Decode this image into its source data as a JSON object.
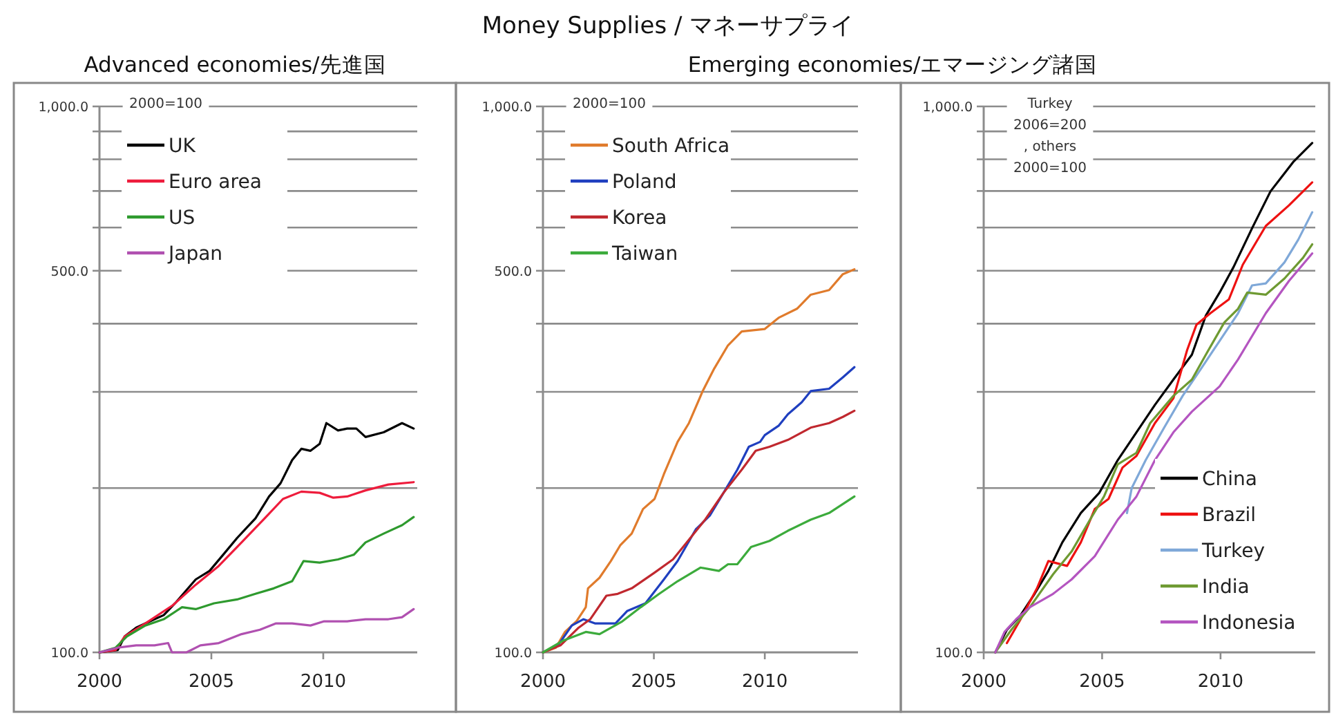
{
  "chart_data": [
    {
      "type": "other",
      "title": "Money Supplies / マネーサプライ"
    },
    {
      "type": "line",
      "subtitle": "Advanced economies/先進国",
      "log": "y",
      "grid": "y",
      "legend": "top left",
      "marker": "none",
      "line_style": "solid",
      "xlim": [
        2000,
        2014.2
      ],
      "xticks": [
        2000,
        2005,
        2010
      ],
      "ylim": [
        100,
        1000
      ],
      "yticks": [
        {
          "value": 100,
          "label": "100.0"
        },
        {
          "value": 200,
          "label": null
        },
        {
          "value": 300,
          "label": null
        },
        {
          "value": 400,
          "label": null
        },
        {
          "value": 500,
          "label": "500.0"
        },
        {
          "value": 600,
          "label": null
        },
        {
          "value": 700,
          "label": null
        },
        {
          "value": 800,
          "label": null
        },
        {
          "value": 900,
          "label": null
        },
        {
          "value": 1000,
          "label": "1,000.0"
        }
      ],
      "annotations": [
        "2000=100"
      ],
      "series": [
        {
          "name": "UK",
          "color": "#000000",
          "x": [
            2000,
            2000.82,
            2001.13,
            2001.64,
            2002.46,
            2002.87,
            2003.38,
            2004.3,
            2004.92,
            2005.53,
            2006.15,
            2006.97,
            2007.58,
            2008.09,
            2008.61,
            2009.02,
            2009.43,
            2009.84,
            2010.14,
            2010.66,
            2011.07,
            2011.48,
            2011.89,
            2012.7,
            2013.52,
            2014.04
          ],
          "values": [
            100,
            101,
            107,
            111,
            115,
            117,
            123,
            136,
            141,
            151,
            162,
            176,
            193,
            204,
            225,
            236,
            234,
            241,
            263,
            255,
            257,
            257,
            248,
            253,
            263,
            257
          ]
        },
        {
          "name": "Euro area",
          "color": "#ee1c3c",
          "x": [
            2000,
            2000.72,
            2001.13,
            2002.05,
            2003.28,
            2004.3,
            2005.33,
            2006.35,
            2007.38,
            2008.2,
            2009.02,
            2009.84,
            2010.45,
            2011.07,
            2011.89,
            2012.91,
            2014.04
          ],
          "values": [
            100,
            101,
            107,
            113,
            122,
            133,
            144,
            159,
            176,
            191,
            197,
            196,
            192,
            193,
            198,
            203,
            205
          ]
        },
        {
          "name": "US",
          "color": "#2e9a2e",
          "x": [
            2000,
            2000.72,
            2001.23,
            2002.05,
            2002.87,
            2003.69,
            2004.3,
            2005.12,
            2006.15,
            2006.97,
            2007.79,
            2008.61,
            2009.12,
            2009.84,
            2010.66,
            2011.37,
            2011.89,
            2012.7,
            2013.52,
            2014.04
          ],
          "values": [
            100,
            102,
            107,
            112,
            115,
            121,
            120,
            123,
            125,
            128,
            131,
            135,
            147,
            146,
            148,
            151,
            159,
            165,
            171,
            177
          ]
        },
        {
          "name": "Japan",
          "color": "#b050b0",
          "x": [
            2000,
            2000.82,
            2001.64,
            2002.46,
            2003.07,
            2003.24,
            2003.89,
            2004.51,
            2005.33,
            2006.35,
            2007.17,
            2007.89,
            2008.61,
            2009.43,
            2010.04,
            2011.07,
            2011.89,
            2012.91,
            2013.52,
            2014.04
          ],
          "values": [
            100,
            102,
            103,
            103,
            104,
            100,
            100,
            103,
            104,
            108,
            110,
            113,
            113,
            112,
            114,
            114,
            115,
            115,
            116,
            120
          ]
        }
      ]
    },
    {
      "type": "line",
      "subtitle": "Emerging economies/エマージング諸国",
      "log": "y",
      "grid": "y",
      "legend": "top left",
      "marker": "none",
      "line_style": "solid",
      "xlim": [
        2000,
        2014.2
      ],
      "xticks": [
        2000,
        2005,
        2010
      ],
      "ylim": [
        100,
        1000
      ],
      "yticks": [
        {
          "value": 100,
          "label": "100.0"
        },
        {
          "value": 200,
          "label": null
        },
        {
          "value": 300,
          "label": null
        },
        {
          "value": 400,
          "label": null
        },
        {
          "value": 500,
          "label": "500.0"
        },
        {
          "value": 600,
          "label": null
        },
        {
          "value": 700,
          "label": null
        },
        {
          "value": 800,
          "label": null
        },
        {
          "value": 900,
          "label": null
        },
        {
          "value": 1000,
          "label": "1,000.0"
        }
      ],
      "annotations": [
        "2000=100"
      ],
      "series": [
        {
          "name": "South Africa",
          "color": "#e07b2c",
          "x": [
            2000,
            2000.58,
            2000.99,
            2001.51,
            2001.93,
            2002.03,
            2002.55,
            2003.06,
            2003.48,
            2004.0,
            2004.51,
            2005.03,
            2005.45,
            2006.07,
            2006.58,
            2007.2,
            2007.72,
            2008.34,
            2008.96,
            2009.99,
            2010.62,
            2011.45,
            2012.07,
            2012.9,
            2013.52,
            2014.04
          ],
          "values": [
            100,
            102,
            109,
            114,
            121,
            131,
            137,
            147,
            157,
            165,
            183,
            191,
            212,
            243,
            263,
            301,
            331,
            365,
            387,
            391,
            410,
            426,
            452,
            461,
            493,
            503
          ]
        },
        {
          "name": "Poland",
          "color": "#1f3fbf",
          "x": [
            2000,
            2000.68,
            2001.3,
            2001.82,
            2002.34,
            2003.27,
            2003.79,
            2004.62,
            2005.45,
            2006.07,
            2006.89,
            2007.52,
            2008.14,
            2008.76,
            2009.28,
            2009.79,
            2010.0,
            2010.62,
            2011.04,
            2011.66,
            2012.07,
            2012.9,
            2013.52,
            2014.04
          ],
          "values": [
            100,
            103,
            112,
            115,
            113,
            113,
            119,
            123,
            136,
            147,
            168,
            178,
            196,
            216,
            238,
            243,
            250,
            260,
            273,
            287,
            301,
            304,
            319,
            333
          ]
        },
        {
          "name": "Korea",
          "color": "#c0282f",
          "x": [
            2000,
            2000.79,
            2001.61,
            2002.13,
            2002.86,
            2003.37,
            2004.0,
            2005.03,
            2005.86,
            2006.48,
            2007.31,
            2008.14,
            2008.96,
            2009.59,
            2010.21,
            2011.04,
            2012.07,
            2012.9,
            2013.52,
            2014.04
          ],
          "values": [
            100,
            103,
            111,
            115,
            127,
            128,
            131,
            140,
            148,
            159,
            175,
            196,
            216,
            234,
            238,
            245,
            258,
            263,
            270,
            277
          ]
        },
        {
          "name": "Taiwan",
          "color": "#3cab3c",
          "x": [
            2000,
            2000.89,
            2001.93,
            2002.55,
            2003.58,
            2004.41,
            2005.24,
            2006.07,
            2007.1,
            2007.93,
            2008.34,
            2008.76,
            2009.38,
            2010.21,
            2011.04,
            2012.07,
            2012.9,
            2014.04
          ],
          "values": [
            100,
            105,
            109,
            108,
            114,
            121,
            128,
            135,
            143,
            141,
            145,
            145,
            156,
            160,
            167,
            175,
            180,
            193
          ]
        }
      ]
    },
    {
      "type": "line",
      "log": "y",
      "grid": "y",
      "legend": "bottom right",
      "marker": "none",
      "line_style": "solid",
      "xlim": [
        2000,
        2014
      ],
      "xticks": [
        2000,
        2005,
        2010
      ],
      "ylim": [
        100,
        1000
      ],
      "yticks": [
        {
          "value": 100,
          "label": "100.0"
        },
        {
          "value": 200,
          "label": null
        },
        {
          "value": 300,
          "label": null
        },
        {
          "value": 400,
          "label": null
        },
        {
          "value": 500,
          "label": null
        },
        {
          "value": 600,
          "label": null
        },
        {
          "value": 700,
          "label": null
        },
        {
          "value": 800,
          "label": null
        },
        {
          "value": 900,
          "label": null
        },
        {
          "value": 1000,
          "label": "1,000.0"
        }
      ],
      "annotations": [
        "Turkey 2006=200 , others 2000=100"
      ],
      "series": [
        {
          "name": "China",
          "color": "#000000",
          "x": [
            2000.49,
            2000.98,
            2001.56,
            2002.15,
            2002.73,
            2003.32,
            2004.1,
            2004.88,
            2005.66,
            2006.45,
            2007.23,
            2008.01,
            2008.79,
            2009.38,
            2009.96,
            2010.55,
            2011.33,
            2012.11,
            2013.09,
            2013.87
          ],
          "values": [
            100,
            110,
            117,
            128,
            141,
            159,
            180,
            196,
            225,
            253,
            284,
            316,
            351,
            414,
            456,
            508,
            598,
            699,
            793,
            857
          ]
        },
        {
          "name": "Brazil",
          "color": "#ee1111",
          "x": [
            2000.98,
            2001.56,
            2002.25,
            2002.73,
            2003.52,
            2004.1,
            2004.69,
            2005.27,
            2005.86,
            2006.45,
            2007.23,
            2008.01,
            2008.59,
            2008.98,
            2009.57,
            2010.35,
            2010.94,
            2011.91,
            2012.89,
            2013.87
          ],
          "values": [
            104,
            115,
            131,
            147,
            144,
            159,
            183,
            191,
            218,
            229,
            263,
            292,
            358,
            398,
            418,
            443,
            513,
            604,
            659,
            726
          ]
        },
        {
          "name": "Turkey",
          "color": "#7fa8d8",
          "x": [
            2006.05,
            2006.25,
            2006.84,
            2007.62,
            2008.4,
            2009.18,
            2009.96,
            2010.74,
            2011.33,
            2011.91,
            2012.7,
            2013.28,
            2013.87
          ],
          "values": [
            180,
            200,
            225,
            258,
            295,
            331,
            372,
            418,
            470,
            474,
            518,
            570,
            640
          ]
        },
        {
          "name": "India",
          "color": "#6e9a32",
          "x": [
            2000.49,
            2001.17,
            2001.95,
            2002.93,
            2003.71,
            2004.49,
            2005.08,
            2005.66,
            2006.45,
            2007.03,
            2008.01,
            2008.79,
            2009.38,
            2010.16,
            2010.74,
            2011.13,
            2011.91,
            2012.7,
            2013.48,
            2013.87
          ],
          "values": [
            100,
            110,
            121,
            139,
            153,
            175,
            193,
            221,
            232,
            263,
            295,
            316,
            351,
            402,
            426,
            456,
            452,
            484,
            528,
            559
          ]
        },
        {
          "name": "Indonesia",
          "color": "#b455c0",
          "x": [
            2000.49,
            2000.88,
            2001.37,
            2001.95,
            2002.93,
            2003.71,
            2004.69,
            2005.66,
            2006.45,
            2007.23,
            2008.01,
            2008.79,
            2009.96,
            2010.74,
            2011.91,
            2012.89,
            2013.87
          ],
          "values": [
            100,
            109,
            115,
            121,
            128,
            136,
            150,
            175,
            193,
            225,
            253,
            276,
            307,
            344,
            418,
            479,
            538
          ]
        }
      ]
    }
  ]
}
